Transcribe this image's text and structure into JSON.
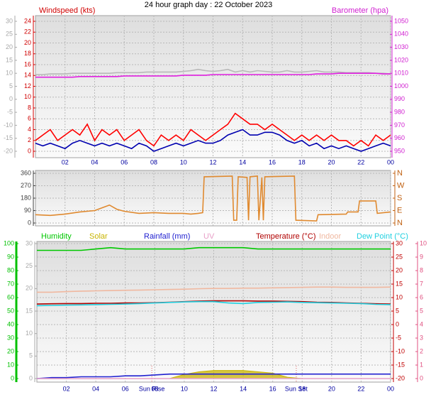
{
  "chart_data": [
    {
      "type": "line",
      "title": "24 hour graph day : 22 October 2023",
      "ylabel": "Windspeed (kts)",
      "y2label": "Barometer (hpa)",
      "x": [
        0,
        0.5,
        1,
        1.5,
        2,
        2.5,
        3,
        3.5,
        4,
        4.5,
        5,
        5.5,
        6,
        6.5,
        7,
        7.5,
        8,
        8.5,
        9,
        9.5,
        10,
        10.5,
        11,
        11.5,
        12,
        12.5,
        13,
        13.5,
        14,
        14.5,
        15,
        15.5,
        16,
        16.5,
        17,
        17.5,
        18,
        18.5,
        19,
        19.5,
        20,
        20.5,
        21,
        21.5,
        22,
        22.5,
        23,
        23.5,
        24
      ],
      "xlim": [
        0,
        24
      ],
      "xticks": [
        {
          "value": 2,
          "label": "02"
        },
        {
          "value": 4,
          "label": "04"
        },
        {
          "value": 6,
          "label": "06"
        },
        {
          "value": 8,
          "label": "08"
        },
        10,
        12,
        14,
        16,
        18,
        20,
        22,
        {
          "value": 24,
          "label": "00"
        }
      ],
      "ylim": [
        0,
        24
      ],
      "yticks": [
        0,
        2,
        4,
        6,
        8,
        10,
        12,
        14,
        16,
        18,
        20,
        22,
        24
      ],
      "y2lim": [
        950,
        1050
      ],
      "y2ticks": [
        950,
        960,
        970,
        980,
        990,
        1000,
        1010,
        1020,
        1030,
        1040,
        1050
      ],
      "y3lim": [
        -20,
        30
      ],
      "y3ticks": [
        -20,
        -15,
        -10,
        -5,
        0,
        5,
        10,
        15,
        20,
        25,
        30
      ],
      "axis_colors": {
        "y": "#d00000",
        "y2": "#d020d0",
        "y3": "#a8a8a8"
      },
      "grid": true,
      "series": [
        {
          "color": "#b8b8b8",
          "axis": "y2",
          "values": [
            1009,
            1009,
            1009.5,
            1009.5,
            1009.5,
            1010,
            1010,
            1010,
            1010,
            1010,
            1010,
            1010.5,
            1010.5,
            1010.5,
            1010.5,
            1011,
            1011,
            1011,
            1011,
            1011,
            1011.5,
            1012,
            1013,
            1012,
            1011.5,
            1012,
            1013,
            1011,
            1012,
            1011,
            1012,
            1011.5,
            1011,
            1011,
            1012,
            1011,
            1011,
            1011.5,
            1012,
            1011,
            1011,
            1011,
            1010.5,
            1010.5,
            1010.5,
            1010.5,
            1010,
            1010,
            1009.5
          ]
        },
        {
          "color": "#e020e0",
          "axis": "y2",
          "values": [
            1007,
            1007,
            1007,
            1007,
            1007,
            1007,
            1007.5,
            1007.5,
            1007.5,
            1007.5,
            1007.5,
            1007.5,
            1008,
            1008,
            1008,
            1008,
            1008,
            1008,
            1008,
            1008,
            1008.5,
            1008.5,
            1008.5,
            1008.5,
            1009,
            1009,
            1009,
            1009,
            1009,
            1009,
            1009,
            1009,
            1009,
            1009,
            1009,
            1009,
            1009,
            1009,
            1009.5,
            1009.5,
            1009.5,
            1010,
            1010,
            1010,
            1010,
            1010,
            1010,
            1009.5,
            1009.5
          ]
        },
        {
          "color": "#ff0000",
          "values": [
            2,
            3,
            4,
            2,
            3,
            4,
            3,
            5,
            2,
            4,
            3,
            4,
            2,
            3,
            4,
            2,
            1,
            3,
            2,
            3,
            2,
            4,
            3,
            2,
            3,
            4,
            5,
            7,
            6,
            5,
            5,
            4,
            5,
            4,
            3,
            2,
            3,
            2,
            3,
            2,
            3,
            2,
            2,
            1,
            2,
            1,
            3,
            2,
            3
          ]
        },
        {
          "color": "#0000b0",
          "values": [
            1.5,
            1,
            1.5,
            1,
            0.5,
            1.5,
            2,
            1.5,
            1,
            1.5,
            1,
            1.5,
            1,
            0.5,
            1.5,
            1,
            0,
            0.5,
            1,
            1.5,
            1,
            1.5,
            2,
            1.5,
            1.5,
            2,
            3,
            3.5,
            4,
            3,
            3,
            3.5,
            3.5,
            3,
            2,
            1.5,
            2,
            1,
            1.5,
            0.5,
            1,
            0.5,
            1,
            0.5,
            0,
            0.5,
            1,
            1.5,
            1
          ]
        }
      ]
    },
    {
      "type": "line",
      "x": [
        0,
        1,
        2,
        3,
        4,
        4.5,
        5,
        5.5,
        6,
        7,
        8,
        9,
        10,
        10.5,
        11,
        11.3,
        11.4,
        13.3,
        13.4,
        13.6,
        13.7,
        14.3,
        14.4,
        14.5,
        15,
        15.1,
        15.3,
        15.4,
        15.5,
        17.5,
        17.6,
        19,
        19.1,
        21,
        21.1,
        21.8,
        21.9,
        23,
        23.1,
        24
      ],
      "xlim": [
        0,
        24
      ],
      "xticks": [
        2,
        4,
        6,
        8,
        10,
        12,
        14,
        16,
        18,
        20,
        22,
        24
      ],
      "show_xtick_labels": false,
      "ylim": [
        0,
        360
      ],
      "yticks": [
        0,
        90,
        180,
        270,
        360
      ],
      "y2lim": [
        0,
        360
      ],
      "y2ticks": [
        {
          "value": 0,
          "label": "N"
        },
        {
          "value": 90,
          "label": "E"
        },
        {
          "value": 180,
          "label": "S"
        },
        {
          "value": 270,
          "label": "W"
        },
        {
          "value": 360,
          "label": "N"
        }
      ],
      "axis_colors": {
        "y": "#404040",
        "y2": "#c06010"
      },
      "grid": true,
      "series": [
        {
          "color": "#e08a30",
          "values": [
            60,
            55,
            65,
            80,
            90,
            110,
            130,
            100,
            85,
            70,
            75,
            70,
            70,
            65,
            70,
            75,
            335,
            340,
            20,
            20,
            335,
            330,
            20,
            335,
            340,
            20,
            330,
            20,
            335,
            340,
            20,
            15,
            60,
            65,
            80,
            80,
            160,
            160,
            70,
            80
          ]
        }
      ]
    },
    {
      "type": "line",
      "x": [
        0,
        1,
        2,
        3,
        4,
        5,
        6,
        7,
        8,
        9,
        10,
        11,
        12,
        13,
        14,
        15,
        16,
        17,
        18,
        19,
        20,
        21,
        22,
        23,
        24
      ],
      "xlim": [
        0,
        24
      ],
      "xticks": [
        {
          "value": 2,
          "label": "02"
        },
        {
          "value": 4,
          "label": "04"
        },
        {
          "value": 6,
          "label": "06"
        },
        {
          "value": 8,
          "label": "08"
        },
        10,
        12,
        14,
        16,
        18,
        20,
        22,
        {
          "value": 24,
          "label": "00"
        }
      ],
      "ylim": [
        0,
        100
      ],
      "yticks": [
        0,
        10,
        20,
        30,
        40,
        50,
        60,
        70,
        80,
        90,
        100
      ],
      "y2lim": [
        -20,
        30
      ],
      "y2ticks": [
        -20,
        -15,
        -10,
        -5,
        0,
        5,
        10,
        15,
        20,
        25,
        30
      ],
      "y3lim": [
        0,
        30
      ],
      "y3ticks": [
        0,
        5,
        10,
        15,
        20,
        25,
        30
      ],
      "y4lim": [
        0,
        10
      ],
      "y4ticks": [
        0,
        1,
        2,
        3,
        4,
        5,
        6,
        7,
        8,
        9,
        10
      ],
      "axis_colors": {
        "y": "#00c000",
        "y2": "#c00000",
        "y3": "#a8a8a8",
        "y4": "#e05080"
      },
      "grid": true,
      "annotations": [
        {
          "x": 7.8,
          "label": "Sun Rise"
        },
        {
          "x": 17.6,
          "label": "Sun Set"
        }
      ],
      "series": [
        {
          "name": "Humidity",
          "color": "#00c800",
          "values": [
            95,
            95,
            95,
            95,
            96,
            97,
            96,
            96,
            96,
            96,
            96,
            97,
            97,
            97,
            97,
            96,
            96,
            96,
            96,
            96,
            96,
            96,
            96,
            96,
            96
          ]
        },
        {
          "name": "Solar",
          "color": "#c8b400",
          "type": "area",
          "values": [
            0,
            0,
            0,
            0,
            0,
            0,
            0,
            0,
            0,
            0,
            3,
            5,
            6,
            6,
            6,
            5,
            4,
            1,
            0,
            0,
            0,
            0,
            0,
            0,
            0
          ]
        },
        {
          "name": "Rainfall (mm)",
          "color": "#2020d0",
          "axis": "y3",
          "values": [
            0,
            0.2,
            0.2,
            0.4,
            0.4,
            0.4,
            0.6,
            0.6,
            0.8,
            1,
            1,
            1,
            1,
            1,
            1,
            1,
            1,
            1,
            1,
            1,
            1,
            1,
            1,
            1,
            1
          ]
        },
        {
          "name": "UV",
          "color": "#e8a0c8",
          "axis": "y4",
          "values": [
            0,
            0,
            0,
            0,
            0,
            0,
            0,
            0,
            0,
            0,
            0,
            0,
            0,
            0,
            0,
            0,
            0,
            0,
            0,
            0,
            0,
            0,
            0,
            0,
            0
          ]
        },
        {
          "name": "Temperature (°C)",
          "color": "#b00000",
          "axis": "y2",
          "values": [
            7.6,
            7.7,
            7.8,
            7.8,
            7.9,
            7.9,
            8,
            8,
            8.1,
            8.3,
            8.5,
            8.7,
            8.8,
            8.8,
            8.8,
            8.7,
            8.7,
            8.6,
            8.5,
            8.3,
            8.2,
            8,
            7.9,
            7.7,
            7.6
          ]
        },
        {
          "name": "Indoor",
          "color": "#f0b8a0",
          "axis": "y2",
          "values": [
            12,
            12,
            12.2,
            12.4,
            12.5,
            12.6,
            12.7,
            12.8,
            12.9,
            13,
            13.1,
            13.3,
            13.4,
            13.4,
            13.5,
            13.5,
            13.6,
            13.7,
            13.8,
            13.9,
            13.9,
            13.8,
            13.8,
            13.8,
            13.9
          ]
        },
        {
          "name": "Dew Point (°C)",
          "color": "#20d0e0",
          "axis": "y2",
          "values": [
            7,
            7.1,
            7.2,
            7.3,
            7.4,
            7.5,
            7.6,
            7.8,
            8,
            8.2,
            8.4,
            8.5,
            8.5,
            8,
            7.8,
            8.2,
            8.3,
            8.4,
            8.2,
            8.1,
            8,
            7.9,
            7.8,
            7.5,
            7.4
          ]
        }
      ]
    }
  ]
}
